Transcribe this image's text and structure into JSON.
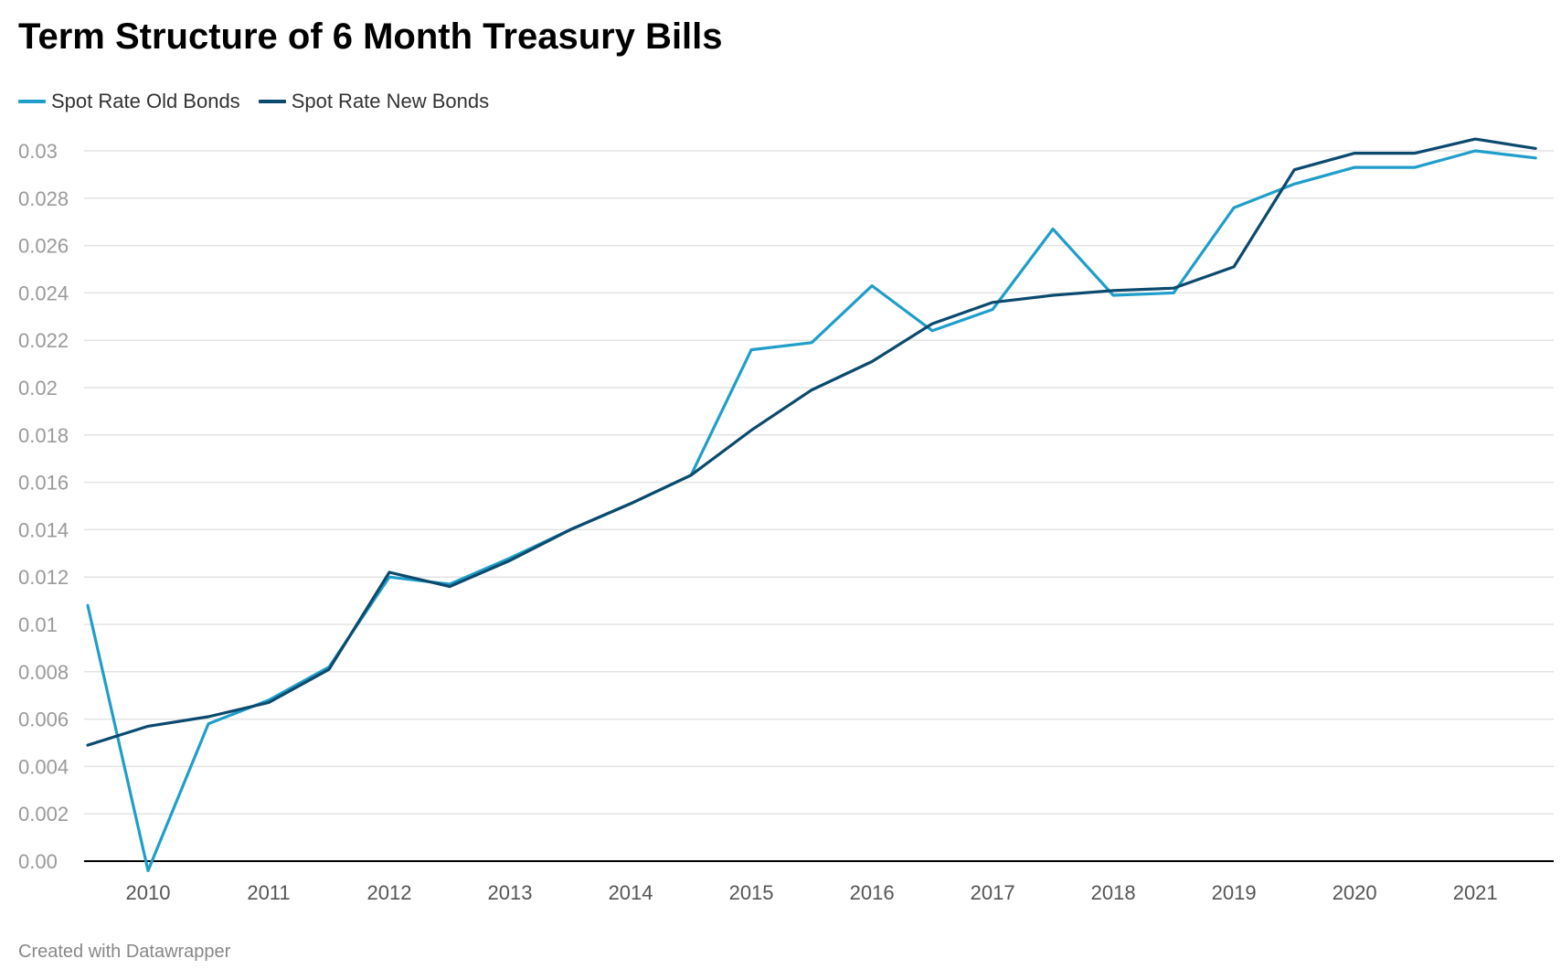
{
  "title": "Term Structure of 6 Month Treasury Bills",
  "footer": "Created with Datawrapper",
  "colors": {
    "old": "#1f9ec9",
    "new": "#0b4a6e",
    "grid": "#e3e3e3",
    "axis": "#000000"
  },
  "chart_data": {
    "type": "line",
    "title": "Term Structure of 6 Month Treasury Bills",
    "xlabel": "",
    "ylabel": "",
    "x": [
      2009.5,
      2010.0,
      2010.5,
      2011.0,
      2011.5,
      2012.0,
      2012.5,
      2013.0,
      2013.5,
      2014.0,
      2014.5,
      2015.0,
      2015.5,
      2016.0,
      2016.5,
      2017.0,
      2017.5,
      2018.0,
      2018.5,
      2019.0,
      2019.5,
      2020.0,
      2020.5,
      2021.0,
      2021.5
    ],
    "xticks": [
      2010,
      2011,
      2012,
      2013,
      2014,
      2015,
      2016,
      2017,
      2018,
      2019,
      2020,
      2021
    ],
    "xlim": [
      2009.47,
      2021.65
    ],
    "ylim": [
      0,
      0.03
    ],
    "yticks": [
      {
        "value": 0,
        "label": "0.00"
      },
      {
        "value": 0.002,
        "label": "0.002"
      },
      {
        "value": 0.004,
        "label": "0.004"
      },
      {
        "value": 0.006,
        "label": "0.006"
      },
      {
        "value": 0.008,
        "label": "0.008"
      },
      {
        "value": 0.01,
        "label": "0.01"
      },
      {
        "value": 0.012,
        "label": "0.012"
      },
      {
        "value": 0.014,
        "label": "0.014"
      },
      {
        "value": 0.016,
        "label": "0.016"
      },
      {
        "value": 0.018,
        "label": "0.018"
      },
      {
        "value": 0.02,
        "label": "0.02"
      },
      {
        "value": 0.022,
        "label": "0.022"
      },
      {
        "value": 0.024,
        "label": "0.024"
      },
      {
        "value": 0.026,
        "label": "0.026"
      },
      {
        "value": 0.028,
        "label": "0.028"
      },
      {
        "value": 0.03,
        "label": "0.03"
      }
    ],
    "grid": true,
    "legend": "top-left",
    "series": [
      {
        "name": "Spot Rate Old Bonds",
        "color": "#1f9ec9",
        "values": [
          0.0108,
          -0.0004,
          0.0058,
          0.0068,
          0.0082,
          0.012,
          0.0117,
          0.0128,
          0.014,
          0.0151,
          0.0163,
          0.0216,
          0.0219,
          0.0243,
          0.0224,
          0.0233,
          0.0267,
          0.0239,
          0.024,
          0.0276,
          0.0286,
          0.0293,
          0.0293,
          0.03,
          0.0297
        ]
      },
      {
        "name": "Spot Rate New Bonds",
        "color": "#0b4a6e",
        "values": [
          0.0049,
          0.0057,
          0.0061,
          0.0067,
          0.0081,
          0.0122,
          0.0116,
          0.0127,
          0.014,
          0.0151,
          0.0163,
          0.0182,
          0.0199,
          0.0211,
          0.0227,
          0.0236,
          0.0239,
          0.0241,
          0.0242,
          0.0251,
          0.0292,
          0.0299,
          0.0299,
          0.0305,
          0.0301
        ]
      }
    ]
  }
}
